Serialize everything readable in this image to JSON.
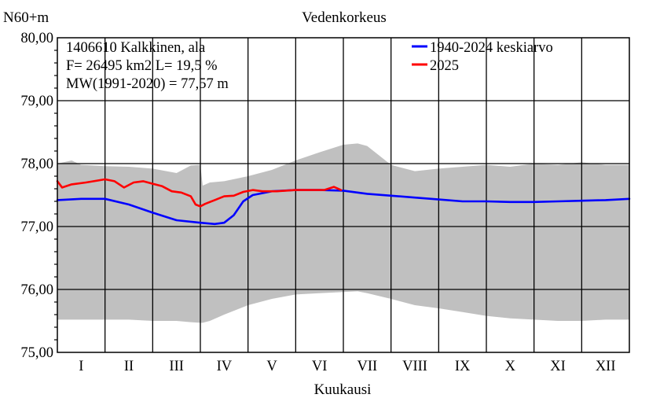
{
  "chart_data": {
    "type": "line",
    "title": "Vedenkorkeus",
    "ylabel": "N60+m",
    "xlabel": "Kuukausi",
    "ylim": [
      75.0,
      80.0
    ],
    "yticks": [
      "75,00",
      "76,00",
      "77,00",
      "78,00",
      "79,00",
      "80,00"
    ],
    "ytick_values": [
      75,
      76,
      77,
      78,
      79,
      80
    ],
    "x_range": [
      0,
      12
    ],
    "categories": [
      "I",
      "II",
      "III",
      "IV",
      "V",
      "VI",
      "VII",
      "VIII",
      "IX",
      "X",
      "XI",
      "XII"
    ],
    "grid": true,
    "info": [
      "1406610 Kalkkinen, ala",
      "F=  26495 km2 L=  19,5 %",
      "MW(1991-2020) = 77,57 m"
    ],
    "legend_position": "top-right",
    "band": {
      "color": "#c0c0c0",
      "x": [
        0,
        0.3,
        0.5,
        1.0,
        1.5,
        2.0,
        2.5,
        2.8,
        3.0,
        3.05,
        3.2,
        3.5,
        4.0,
        4.5,
        5.0,
        5.5,
        6.0,
        6.3,
        6.5,
        7.0,
        7.5,
        8.0,
        8.5,
        9.0,
        9.5,
        10.0,
        10.5,
        11.0,
        11.5,
        12.0
      ],
      "max": [
        78.0,
        78.05,
        77.98,
        77.96,
        77.95,
        77.92,
        77.85,
        77.97,
        77.98,
        77.65,
        77.7,
        77.72,
        77.8,
        77.9,
        78.05,
        78.18,
        78.3,
        78.32,
        78.28,
        77.98,
        77.88,
        77.92,
        77.95,
        77.98,
        77.95,
        78.0,
        77.98,
        78.02,
        77.98,
        77.98
      ],
      "min": [
        75.52,
        75.52,
        75.52,
        75.52,
        75.52,
        75.5,
        75.5,
        75.48,
        75.47,
        75.47,
        75.5,
        75.6,
        75.75,
        75.85,
        75.92,
        75.94,
        75.96,
        75.97,
        75.94,
        75.85,
        75.75,
        75.7,
        75.64,
        75.58,
        75.54,
        75.52,
        75.5,
        75.5,
        75.52,
        75.52
      ]
    },
    "series": [
      {
        "name": "1940-2024 keskiarvo",
        "color": "#0000ff",
        "x": [
          0,
          0.5,
          1.0,
          1.5,
          2.0,
          2.5,
          3.0,
          3.3,
          3.5,
          3.7,
          3.9,
          4.1,
          4.3,
          4.5,
          5.0,
          5.5,
          6.0,
          6.5,
          7.0,
          7.5,
          8.0,
          8.5,
          9.0,
          9.5,
          10.0,
          10.5,
          11.0,
          11.5,
          12.0
        ],
        "values": [
          77.42,
          77.44,
          77.44,
          77.35,
          77.22,
          77.1,
          77.06,
          77.04,
          77.06,
          77.18,
          77.4,
          77.5,
          77.53,
          77.56,
          77.58,
          77.58,
          77.57,
          77.52,
          77.49,
          77.46,
          77.43,
          77.4,
          77.4,
          77.39,
          77.39,
          77.4,
          77.41,
          77.42,
          77.44
        ]
      },
      {
        "name": "2025",
        "color": "#ff0000",
        "x": [
          0,
          0.1,
          0.3,
          0.6,
          1.0,
          1.2,
          1.4,
          1.6,
          1.8,
          2.0,
          2.2,
          2.4,
          2.6,
          2.8,
          2.9,
          3.0,
          3.1,
          3.3,
          3.5,
          3.7,
          3.9,
          4.1,
          4.3,
          4.6,
          5.0,
          5.3,
          5.6,
          5.8,
          5.95
        ],
        "values": [
          77.72,
          77.62,
          77.67,
          77.7,
          77.75,
          77.72,
          77.62,
          77.7,
          77.72,
          77.68,
          77.64,
          77.56,
          77.54,
          77.48,
          77.35,
          77.32,
          77.36,
          77.42,
          77.48,
          77.49,
          77.55,
          77.58,
          77.56,
          77.56,
          77.58,
          77.58,
          77.58,
          77.63,
          77.58
        ]
      }
    ]
  }
}
